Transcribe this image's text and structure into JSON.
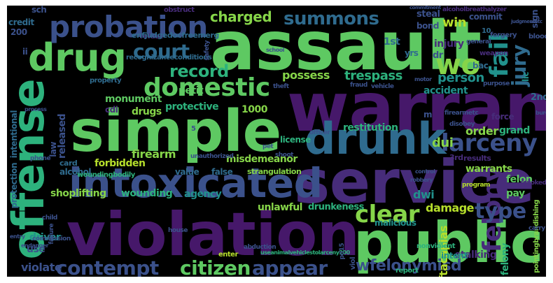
{
  "palette": {
    "background": "#000000",
    "dark_purple": "#46186a",
    "purple": "#472c7a",
    "indigo": "#3b518b",
    "blue": "#2f6b8e",
    "teal": "#21918c",
    "teal_green": "#2db27d",
    "green": "#5ec962",
    "light_green": "#86d549",
    "yellow_green": "#b5de2b"
  },
  "words": {
    "assault": "assault",
    "warrant": "warrant",
    "simple": "simple",
    "service": "service",
    "violation": "violation",
    "public": "public",
    "intoxicated": "intoxicated",
    "offense": "offense",
    "drunk": "drunk",
    "drug": "drug",
    "probation": "probation",
    "domestic": "domestic",
    "court": "court",
    "record": "record",
    "fail": "fail",
    "charged": "charged",
    "summons": "summons",
    "jury": "jury",
    "wo": "wo",
    "larceny": "larceny",
    "felony": "felony",
    "type": "type",
    "clear": "clear",
    "contempt": "contempt",
    "citizen": "citizen",
    "appear": "appear",
    "damage": "damage",
    "unlawful": "unlawful",
    "dui": "dui",
    "dwi": "dwi",
    "order": "order",
    "firearm": "firearm",
    "forbidden": "forbidden",
    "misdemeanor": "misdemeanor",
    "possess": "possess",
    "trespass": "trespass",
    "person": "person",
    "accident": "accident",
    "monument": "monument",
    "petit": "petit",
    "drugs": "drugs",
    "protective": "protective",
    "cdi": "cdi",
    "n1000": "1000",
    "released": "released",
    "restitution": "restitution",
    "license": "license",
    "grand": "grand",
    "felon": "felon",
    "pay": "pay",
    "agency": "agency",
    "shoplifting": "shoplifting",
    "wounding": "wounding",
    "drunkeness": "drunkeness",
    "malicious": "malicious",
    "wfelonymisd": "wfelonymisd",
    "ftacapias": "ftacapias",
    "stalking": "stalking",
    "intent": "intent",
    "driver": "driver",
    "violate": "violate",
    "use": "use",
    "steal": "steal",
    "bond": "bond",
    "win": "win",
    "commit": "commit",
    "injury": "injury",
    "dr": "dr",
    "n1st": "1st",
    "yrs": "yrs",
    "n2nd": "2nd",
    "lic": "lic",
    "force": "force",
    "warrants": "warrants",
    "results": "results",
    "n3rd": "3rd",
    "alcohol": "alcohol",
    "card": "card",
    "value": "value",
    "false": "false",
    "strangulation": "strangulation",
    "woundingbodily": "woundingbodily",
    "law": "law",
    "intentional": "intentional",
    "protection": "protection",
    "credit": "credit",
    "n200": "200",
    "ii": "ii",
    "obstruct": "obstruct",
    "refuse": "refuse",
    "enfjudgedocfreemerg": "enfjudgedocfreemerg",
    "recognizanceconditions": "recognizanceconditions",
    "property": "property",
    "theft": "theft",
    "fraud": "fraud",
    "vehicle": "vehicle",
    "purpose": "purpose",
    "bac": "bac",
    "weapon": "weapon",
    "general": "general",
    "forgery": "forgery",
    "n10": "10",
    "blood": "blood",
    "sign": "sign",
    "alcoholbreathalyzer": "alcoholbreathalyzer",
    "firearmetc": "firearmetc",
    "disobey": "disobey",
    "officer": "officer",
    "pet": "pet",
    "shoot": "shoot",
    "unauthorized": "unauthorized",
    "phone": "phone",
    "child": "child",
    "house": "house",
    "failure": "failure",
    "commission": "commission",
    "endanger": "endanger",
    "entry": "entry",
    "enter": "enter",
    "abduction": "abduction",
    "usesimalvehiclestolarceny200": "useanimalvehiclestolarceny200",
    "pointingbrandishing": "pointingbrandishing",
    "nonviolent": "nonviolent",
    "report": "report",
    "program": "program",
    "revoked": "revoked",
    "control": "control",
    "robbery": "robbery",
    "carry": "carry",
    "viol": "viol",
    "pd15": "pd15",
    "school": "school",
    "safety": "safety",
    "process": "process",
    "burgalt": "burglary",
    "motor": "motor",
    "commitment": "commitment",
    "judgmentetc": "judgmentetc",
    "sch": "sch",
    "n5": "5",
    "m": "m",
    "n10b": "10"
  }
}
